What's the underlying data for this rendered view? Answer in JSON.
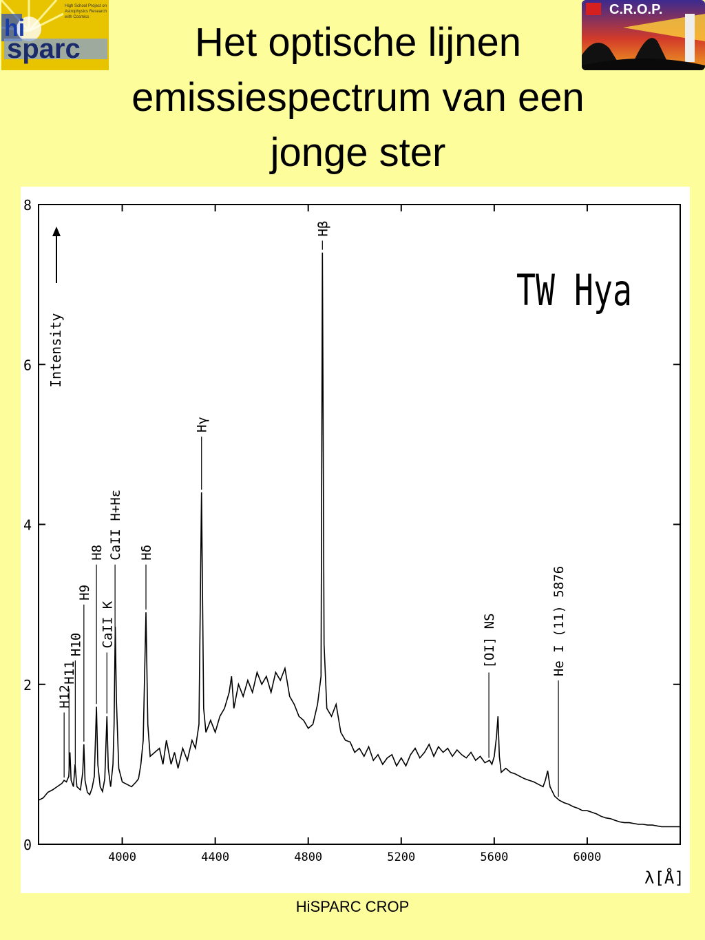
{
  "slide": {
    "title_lines": [
      "Het optische lijnen",
      "emissiespectrum van een",
      "jonge ster"
    ],
    "footer": "HiSPARC CROP"
  },
  "logos": {
    "left": {
      "text": "sparc",
      "prefix": "hi",
      "tagline": [
        "High School Project on",
        "Astrophysics Research",
        "with Cosmics"
      ]
    },
    "right": {
      "text": "C.R.O.P."
    }
  },
  "chart_data": {
    "type": "line",
    "title": "TW Hya",
    "xlabel": "λ[Å]",
    "ylabel": "Intensity",
    "xlim": [
      3640,
      6400
    ],
    "ylim": [
      0,
      8
    ],
    "x_ticks": [
      4000,
      4400,
      4800,
      5200,
      5600,
      6000
    ],
    "x_tick_labels": [
      "4000",
      "4400",
      "4800",
      "5200",
      "5600",
      "6000"
    ],
    "y_ticks": [
      0,
      2,
      4,
      6,
      8
    ],
    "y_tick_labels": [
      "0",
      "2",
      "4",
      "6",
      "8"
    ],
    "grid": false,
    "series": [
      {
        "values": [
          [
            3640,
            0.55
          ],
          [
            3660,
            0.58
          ],
          [
            3680,
            0.65
          ],
          [
            3700,
            0.68
          ],
          [
            3720,
            0.72
          ],
          [
            3740,
            0.76
          ],
          [
            3750,
            0.8
          ],
          [
            3760,
            0.78
          ],
          [
            3770,
            0.85
          ],
          [
            3775,
            1.15
          ],
          [
            3780,
            0.8
          ],
          [
            3790,
            0.72
          ],
          [
            3797,
            1.0
          ],
          [
            3805,
            0.72
          ],
          [
            3820,
            0.68
          ],
          [
            3830,
            0.9
          ],
          [
            3835,
            1.25
          ],
          [
            3840,
            0.8
          ],
          [
            3850,
            0.65
          ],
          [
            3860,
            0.62
          ],
          [
            3870,
            0.7
          ],
          [
            3880,
            0.85
          ],
          [
            3889,
            1.72
          ],
          [
            3895,
            1.0
          ],
          [
            3905,
            0.72
          ],
          [
            3915,
            0.66
          ],
          [
            3925,
            0.82
          ],
          [
            3934,
            1.6
          ],
          [
            3940,
            0.95
          ],
          [
            3950,
            0.72
          ],
          [
            3960,
            1.0
          ],
          [
            3965,
            1.5
          ],
          [
            3970,
            2.72
          ],
          [
            3975,
            1.8
          ],
          [
            3985,
            0.95
          ],
          [
            4000,
            0.78
          ],
          [
            4020,
            0.75
          ],
          [
            4040,
            0.72
          ],
          [
            4060,
            0.78
          ],
          [
            4070,
            0.82
          ],
          [
            4080,
            1.0
          ],
          [
            4090,
            1.3
          ],
          [
            4102,
            2.9
          ],
          [
            4110,
            1.5
          ],
          [
            4120,
            1.1
          ],
          [
            4140,
            1.15
          ],
          [
            4160,
            1.2
          ],
          [
            4175,
            1.0
          ],
          [
            4190,
            1.3
          ],
          [
            4210,
            1.0
          ],
          [
            4225,
            1.15
          ],
          [
            4240,
            0.95
          ],
          [
            4260,
            1.2
          ],
          [
            4280,
            1.05
          ],
          [
            4300,
            1.3
          ],
          [
            4315,
            1.2
          ],
          [
            4330,
            1.5
          ],
          [
            4341,
            4.4
          ],
          [
            4350,
            1.7
          ],
          [
            4360,
            1.4
          ],
          [
            4380,
            1.55
          ],
          [
            4400,
            1.4
          ],
          [
            4420,
            1.6
          ],
          [
            4440,
            1.7
          ],
          [
            4460,
            1.9
          ],
          [
            4470,
            2.1
          ],
          [
            4480,
            1.7
          ],
          [
            4500,
            2.0
          ],
          [
            4520,
            1.85
          ],
          [
            4540,
            2.05
          ],
          [
            4560,
            1.9
          ],
          [
            4580,
            2.15
          ],
          [
            4600,
            2.0
          ],
          [
            4620,
            2.1
          ],
          [
            4640,
            1.9
          ],
          [
            4660,
            2.15
          ],
          [
            4680,
            2.05
          ],
          [
            4700,
            2.2
          ],
          [
            4720,
            1.85
          ],
          [
            4740,
            1.75
          ],
          [
            4760,
            1.6
          ],
          [
            4780,
            1.55
          ],
          [
            4800,
            1.45
          ],
          [
            4820,
            1.5
          ],
          [
            4840,
            1.75
          ],
          [
            4855,
            2.1
          ],
          [
            4861,
            7.4
          ],
          [
            4868,
            2.5
          ],
          [
            4880,
            1.7
          ],
          [
            4900,
            1.6
          ],
          [
            4920,
            1.75
          ],
          [
            4940,
            1.4
          ],
          [
            4960,
            1.3
          ],
          [
            4980,
            1.28
          ],
          [
            5000,
            1.15
          ],
          [
            5020,
            1.2
          ],
          [
            5040,
            1.1
          ],
          [
            5060,
            1.22
          ],
          [
            5080,
            1.05
          ],
          [
            5100,
            1.12
          ],
          [
            5120,
            1.0
          ],
          [
            5140,
            1.08
          ],
          [
            5160,
            1.12
          ],
          [
            5180,
            0.98
          ],
          [
            5200,
            1.08
          ],
          [
            5220,
            0.98
          ],
          [
            5240,
            1.12
          ],
          [
            5260,
            1.2
          ],
          [
            5280,
            1.08
          ],
          [
            5300,
            1.15
          ],
          [
            5320,
            1.25
          ],
          [
            5340,
            1.1
          ],
          [
            5360,
            1.22
          ],
          [
            5380,
            1.15
          ],
          [
            5400,
            1.2
          ],
          [
            5420,
            1.1
          ],
          [
            5440,
            1.18
          ],
          [
            5460,
            1.12
          ],
          [
            5480,
            1.08
          ],
          [
            5500,
            1.15
          ],
          [
            5520,
            1.05
          ],
          [
            5540,
            1.1
          ],
          [
            5560,
            1.02
          ],
          [
            5580,
            1.05
          ],
          [
            5590,
            1.0
          ],
          [
            5600,
            1.1
          ],
          [
            5610,
            1.35
          ],
          [
            5616,
            1.6
          ],
          [
            5622,
            1.1
          ],
          [
            5630,
            0.9
          ],
          [
            5650,
            0.95
          ],
          [
            5670,
            0.9
          ],
          [
            5690,
            0.88
          ],
          [
            5710,
            0.85
          ],
          [
            5730,
            0.82
          ],
          [
            5750,
            0.8
          ],
          [
            5770,
            0.78
          ],
          [
            5790,
            0.75
          ],
          [
            5810,
            0.72
          ],
          [
            5820,
            0.8
          ],
          [
            5830,
            0.92
          ],
          [
            5840,
            0.72
          ],
          [
            5860,
            0.6
          ],
          [
            5880,
            0.55
          ],
          [
            5900,
            0.52
          ],
          [
            5920,
            0.5
          ],
          [
            5940,
            0.47
          ],
          [
            5960,
            0.45
          ],
          [
            5980,
            0.42
          ],
          [
            6000,
            0.42
          ],
          [
            6020,
            0.4
          ],
          [
            6040,
            0.38
          ],
          [
            6060,
            0.35
          ],
          [
            6080,
            0.33
          ],
          [
            6100,
            0.32
          ],
          [
            6120,
            0.3
          ],
          [
            6140,
            0.28
          ],
          [
            6160,
            0.27
          ],
          [
            6180,
            0.27
          ],
          [
            6200,
            0.26
          ],
          [
            6220,
            0.25
          ],
          [
            6240,
            0.25
          ],
          [
            6260,
            0.24
          ],
          [
            6280,
            0.24
          ],
          [
            6300,
            0.23
          ],
          [
            6320,
            0.22
          ],
          [
            6340,
            0.22
          ],
          [
            6360,
            0.22
          ],
          [
            6380,
            0.22
          ],
          [
            6400,
            0.22
          ]
        ]
      }
    ],
    "annotations": [
      {
        "label": "H12",
        "x": 3750,
        "text_y": 1.7
      },
      {
        "label": "H11",
        "x": 3771,
        "text_y": 2.0
      },
      {
        "label": "H10",
        "x": 3798,
        "text_y": 2.35
      },
      {
        "label": "H9",
        "x": 3835,
        "text_y": 3.05
      },
      {
        "label": "H8",
        "x": 3889,
        "text_y": 3.55
      },
      {
        "label": "CaII K",
        "x": 3934,
        "text_y": 2.45
      },
      {
        "label": "CaII H+Hε",
        "x": 3969,
        "text_y": 3.55
      },
      {
        "label": "Hδ",
        "x": 4102,
        "text_y": 3.55
      },
      {
        "label": "Hγ",
        "x": 4341,
        "text_y": 5.15
      },
      {
        "label": "Hβ",
        "x": 4861,
        "text_y": 7.6
      },
      {
        "label": "[OI] NS",
        "x": 5577,
        "text_y": 2.2
      },
      {
        "label": "He I (11) 5876",
        "x": 5876,
        "text_y": 2.1
      }
    ]
  }
}
